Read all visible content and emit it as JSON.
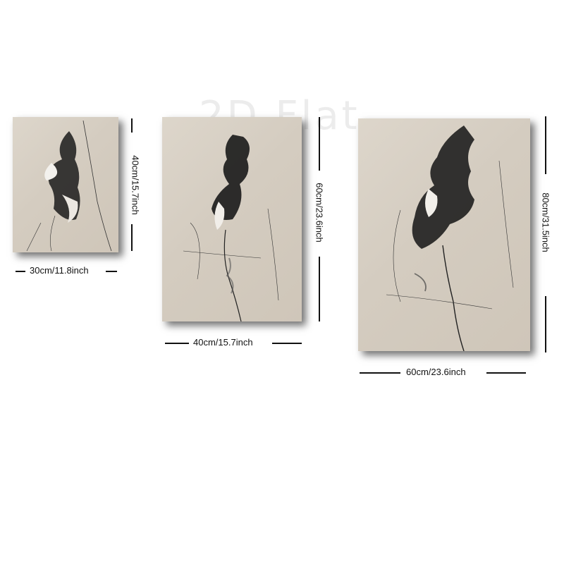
{
  "watermark": "2D Flat",
  "panels": [
    {
      "width_label": "30cm/11.8inch",
      "height_label": "40cm/15.7inch"
    },
    {
      "width_label": "40cm/15.7inch",
      "height_label": "60cm/23.6inch"
    },
    {
      "width_label": "60cm/23.6inch",
      "height_label": "80cm/31.5inch"
    }
  ],
  "colors": {
    "canvas": "#d6cec2",
    "ink": "#111111"
  }
}
